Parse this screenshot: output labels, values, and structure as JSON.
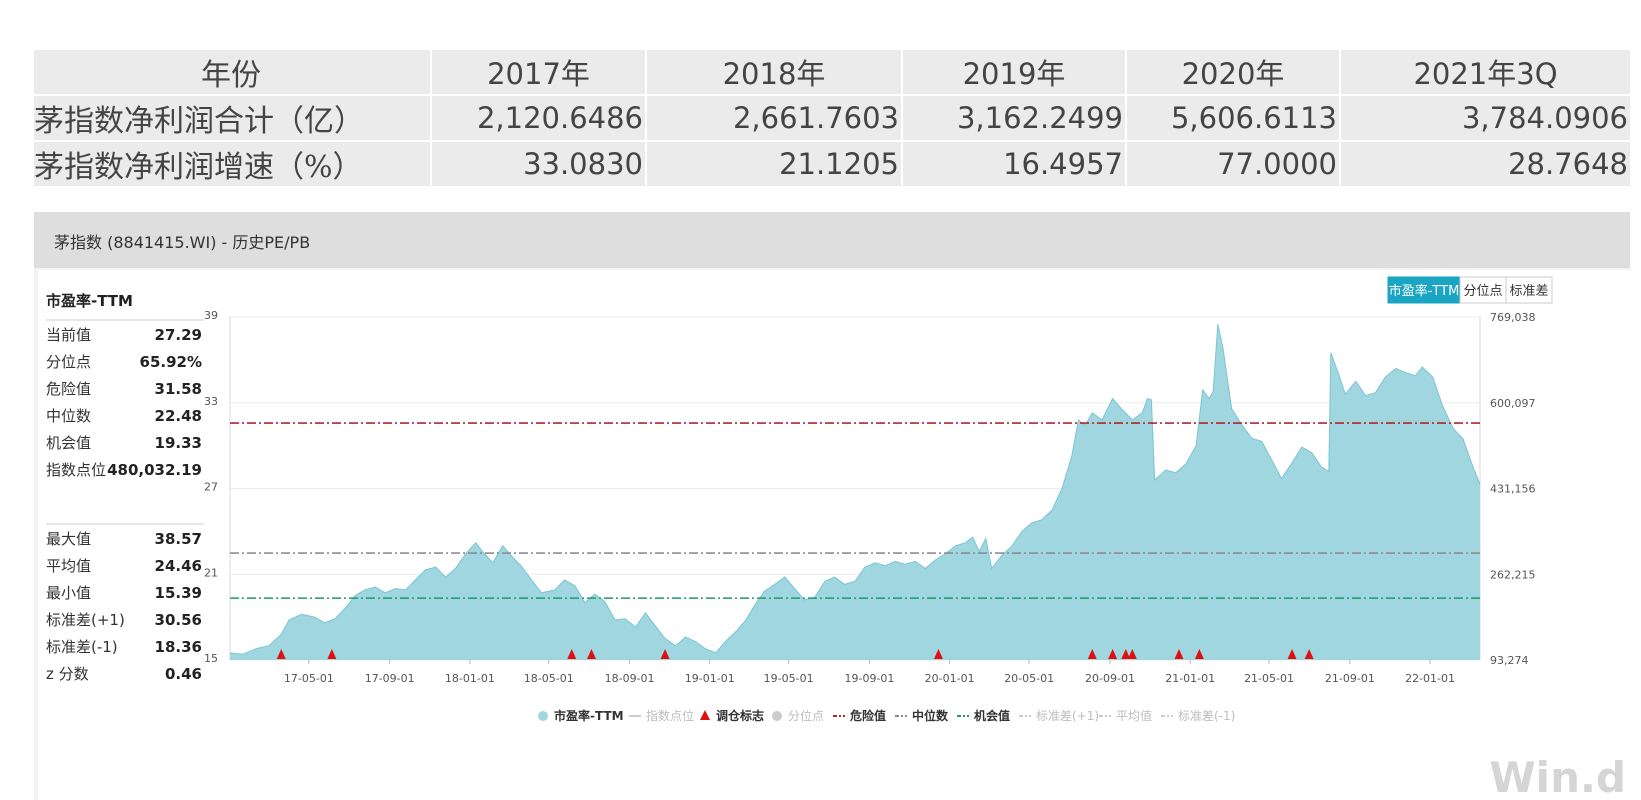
{
  "table": {
    "header": [
      "年份",
      "2017年",
      "2018年",
      "2019年",
      "2020年",
      "2021年3Q"
    ],
    "rows": [
      [
        "茅指数净利润合计（亿）",
        "2,120.6486",
        "2,661.7603",
        "3,162.2499",
        "5,606.6113",
        "3,784.0906"
      ],
      [
        "茅指数净利润增速（%）",
        "33.0830",
        "21.1205",
        "16.4957",
        "77.0000",
        "28.7648"
      ]
    ]
  },
  "panel": {
    "title": "茅指数 (8841415.WI) - 历史PE/PB",
    "tabs": [
      "市盈率-TTM",
      "分位点",
      "标准差"
    ],
    "active_tab": 0,
    "watermark": "Win.d"
  },
  "stats": {
    "heading": "市盈率-TTM",
    "group1": [
      {
        "label": "当前值",
        "value": "27.29"
      },
      {
        "label": "分位点",
        "value": "65.92%"
      },
      {
        "label": "危险值",
        "value": "31.58"
      },
      {
        "label": "中位数",
        "value": "22.48"
      },
      {
        "label": "机会值",
        "value": "19.33"
      },
      {
        "label": "指数点位",
        "value": "480,032.19"
      }
    ],
    "group2": [
      {
        "label": "最大值",
        "value": "38.57"
      },
      {
        "label": "平均值",
        "value": "24.46"
      },
      {
        "label": "最小值",
        "value": "15.39"
      },
      {
        "label": "标准差(+1)",
        "value": "30.56"
      },
      {
        "label": "标准差(-1)",
        "value": "18.36"
      },
      {
        "label": "z 分数",
        "value": "0.46"
      }
    ]
  },
  "colors": {
    "area": "#9fd6e0",
    "area_line": "#7cc5d3",
    "danger": "#b3262a",
    "median": "#8d8d8d",
    "opportunity": "#1f9a6a",
    "marker": "#e01010",
    "tab_active": "#1aa6c2"
  },
  "chart_data": {
    "type": "area",
    "y_left": {
      "min": 15,
      "max": 39,
      "ticks": [
        "15",
        "21",
        "27",
        "33",
        "39"
      ]
    },
    "y_right": {
      "ticks": [
        "93,274",
        "262,215",
        "431,156",
        "600,097",
        "769,038"
      ]
    },
    "x_ticks": [
      "17-05-01",
      "17-09-01",
      "18-01-01",
      "18-05-01",
      "18-09-01",
      "19-01-01",
      "19-05-01",
      "19-09-01",
      "20-01-01",
      "20-05-01",
      "20-09-01",
      "21-01-01",
      "21-05-01",
      "21-09-01",
      "22-01-01"
    ],
    "x_range": [
      "2017-01-01",
      "2022-03-18"
    ],
    "series": [
      {
        "name": "市盈率-TTM",
        "points": [
          [
            "2017-01-01",
            15.5
          ],
          [
            "2017-01-20",
            15.4
          ],
          [
            "2017-02-10",
            15.8
          ],
          [
            "2017-03-01",
            16.0
          ],
          [
            "2017-03-20",
            16.8
          ],
          [
            "2017-04-01",
            17.8
          ],
          [
            "2017-04-20",
            18.2
          ],
          [
            "2017-05-10",
            18.0
          ],
          [
            "2017-05-25",
            17.6
          ],
          [
            "2017-06-10",
            17.9
          ],
          [
            "2017-06-25",
            18.6
          ],
          [
            "2017-07-10",
            19.5
          ],
          [
            "2017-07-25",
            19.9
          ],
          [
            "2017-08-10",
            20.1
          ],
          [
            "2017-08-25",
            19.7
          ],
          [
            "2017-09-10",
            20.0
          ],
          [
            "2017-09-25",
            19.9
          ],
          [
            "2017-10-10",
            20.6
          ],
          [
            "2017-10-25",
            21.3
          ],
          [
            "2017-11-10",
            21.5
          ],
          [
            "2017-11-25",
            20.8
          ],
          [
            "2017-12-10",
            21.4
          ],
          [
            "2017-12-25",
            22.4
          ],
          [
            "2018-01-10",
            23.2
          ],
          [
            "2018-01-20",
            22.6
          ],
          [
            "2018-02-05",
            21.8
          ],
          [
            "2018-02-20",
            23.0
          ],
          [
            "2018-03-05",
            22.3
          ],
          [
            "2018-03-20",
            21.6
          ],
          [
            "2018-04-05",
            20.6
          ],
          [
            "2018-04-20",
            19.7
          ],
          [
            "2018-05-10",
            19.9
          ],
          [
            "2018-05-25",
            20.6
          ],
          [
            "2018-06-10",
            20.2
          ],
          [
            "2018-06-25",
            19.0
          ],
          [
            "2018-07-10",
            19.6
          ],
          [
            "2018-07-25",
            19.1
          ],
          [
            "2018-08-10",
            17.8
          ],
          [
            "2018-08-25",
            17.9
          ],
          [
            "2018-09-10",
            17.3
          ],
          [
            "2018-09-25",
            18.3
          ],
          [
            "2018-10-10",
            17.4
          ],
          [
            "2018-10-25",
            16.5
          ],
          [
            "2018-11-10",
            16.0
          ],
          [
            "2018-11-25",
            16.6
          ],
          [
            "2018-12-10",
            16.3
          ],
          [
            "2018-12-25",
            15.8
          ],
          [
            "2019-01-10",
            15.5
          ],
          [
            "2019-01-25",
            16.3
          ],
          [
            "2019-02-10",
            17.0
          ],
          [
            "2019-02-25",
            17.8
          ],
          [
            "2019-03-10",
            18.8
          ],
          [
            "2019-03-25",
            19.8
          ],
          [
            "2019-04-10",
            20.3
          ],
          [
            "2019-04-25",
            20.8
          ],
          [
            "2019-05-10",
            20.0
          ],
          [
            "2019-05-25",
            19.2
          ],
          [
            "2019-06-10",
            19.4
          ],
          [
            "2019-06-25",
            20.5
          ],
          [
            "2019-07-10",
            20.8
          ],
          [
            "2019-07-25",
            20.3
          ],
          [
            "2019-08-10",
            20.5
          ],
          [
            "2019-08-25",
            21.5
          ],
          [
            "2019-09-10",
            21.8
          ],
          [
            "2019-09-25",
            21.6
          ],
          [
            "2019-10-10",
            21.9
          ],
          [
            "2019-10-25",
            21.7
          ],
          [
            "2019-11-10",
            21.9
          ],
          [
            "2019-11-25",
            21.4
          ],
          [
            "2019-12-10",
            22.0
          ],
          [
            "2019-12-25",
            22.4
          ],
          [
            "2020-01-10",
            23.0
          ],
          [
            "2020-01-25",
            23.2
          ],
          [
            "2020-02-05",
            23.6
          ],
          [
            "2020-02-15",
            22.6
          ],
          [
            "2020-02-25",
            23.5
          ],
          [
            "2020-03-05",
            21.4
          ],
          [
            "2020-03-20",
            22.3
          ],
          [
            "2020-04-05",
            23.0
          ],
          [
            "2020-04-20",
            24.0
          ],
          [
            "2020-05-05",
            24.6
          ],
          [
            "2020-05-20",
            24.8
          ],
          [
            "2020-06-05",
            25.5
          ],
          [
            "2020-06-20",
            27.0
          ],
          [
            "2020-07-05",
            29.3
          ],
          [
            "2020-07-15",
            31.8
          ],
          [
            "2020-07-25",
            31.4
          ],
          [
            "2020-08-05",
            32.3
          ],
          [
            "2020-08-20",
            31.8
          ],
          [
            "2020-09-05",
            33.3
          ],
          [
            "2020-09-20",
            32.5
          ],
          [
            "2020-10-05",
            31.8
          ],
          [
            "2020-10-20",
            32.3
          ],
          [
            "2020-10-28",
            33.3
          ],
          [
            "2020-11-03",
            33.2
          ],
          [
            "2020-11-08",
            27.6
          ],
          [
            "2020-11-25",
            28.3
          ],
          [
            "2020-12-10",
            28.1
          ],
          [
            "2020-12-25",
            28.7
          ],
          [
            "2021-01-10",
            30.0
          ],
          [
            "2021-01-20",
            33.9
          ],
          [
            "2021-01-30",
            33.3
          ],
          [
            "2021-02-05",
            33.8
          ],
          [
            "2021-02-12",
            38.5
          ],
          [
            "2021-02-20",
            36.8
          ],
          [
            "2021-03-05",
            32.6
          ],
          [
            "2021-03-20",
            31.5
          ],
          [
            "2021-04-05",
            30.5
          ],
          [
            "2021-04-20",
            30.3
          ],
          [
            "2021-05-05",
            29.0
          ],
          [
            "2021-05-20",
            27.7
          ],
          [
            "2021-06-05",
            28.8
          ],
          [
            "2021-06-20",
            29.9
          ],
          [
            "2021-07-05",
            29.5
          ],
          [
            "2021-07-20",
            28.5
          ],
          [
            "2021-07-31",
            28.2
          ],
          [
            "2021-08-03",
            36.5
          ],
          [
            "2021-08-15",
            35.0
          ],
          [
            "2021-08-25",
            33.6
          ],
          [
            "2021-09-10",
            34.5
          ],
          [
            "2021-09-25",
            33.5
          ],
          [
            "2021-10-10",
            33.7
          ],
          [
            "2021-10-25",
            34.8
          ],
          [
            "2021-11-10",
            35.4
          ],
          [
            "2021-11-25",
            35.1
          ],
          [
            "2021-12-10",
            34.9
          ],
          [
            "2021-12-20",
            35.5
          ],
          [
            "2022-01-05",
            34.8
          ],
          [
            "2022-01-20",
            32.8
          ],
          [
            "2022-02-05",
            31.2
          ],
          [
            "2022-02-20",
            30.5
          ],
          [
            "2022-03-05",
            28.8
          ],
          [
            "2022-03-18",
            27.3
          ]
        ]
      },
      {
        "name": "危险值",
        "value": 31.58,
        "style": "dash-dot"
      },
      {
        "name": "中位数",
        "value": 22.48,
        "style": "dash-dot"
      },
      {
        "name": "机会值",
        "value": 19.33,
        "style": "dash-dot"
      },
      {
        "name": "调仓标志",
        "dates": [
          "2017-03-20",
          "2017-06-05",
          "2018-06-05",
          "2018-07-05",
          "2018-10-25",
          "2019-12-15",
          "2020-08-05",
          "2020-09-05",
          "2020-09-25",
          "2020-10-05",
          "2020-12-15",
          "2021-01-15",
          "2021-06-05",
          "2021-07-01"
        ]
      }
    ],
    "legend": [
      {
        "label": "市盈率-TTM",
        "kind": "dot",
        "active": true
      },
      {
        "label": "指数点位",
        "kind": "line",
        "active": false
      },
      {
        "label": "调仓标志",
        "kind": "triangle",
        "active": true
      },
      {
        "label": "分位点",
        "kind": "dot",
        "active": false
      },
      {
        "label": "危险值",
        "kind": "dash-dot",
        "active": true
      },
      {
        "label": "中位数",
        "kind": "dash-dot",
        "active": true
      },
      {
        "label": "机会值",
        "kind": "dash-dot",
        "active": true
      },
      {
        "label": "标准差(+1)",
        "kind": "dash-dot",
        "active": false
      },
      {
        "label": "平均值",
        "kind": "dash-dot",
        "active": false
      },
      {
        "label": "标准差(-1)",
        "kind": "dash-dot",
        "active": false
      }
    ],
    "legend_position": "bottom"
  }
}
